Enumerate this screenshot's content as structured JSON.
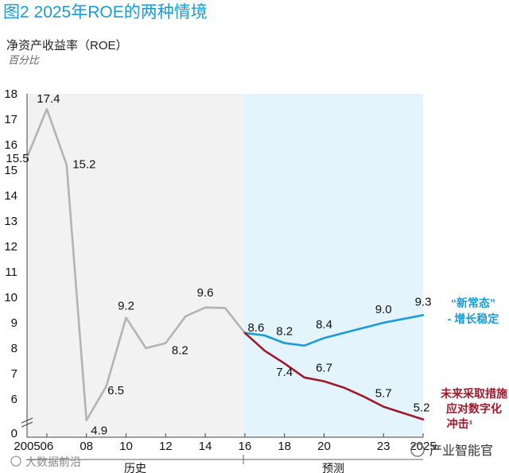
{
  "figure": {
    "title": "图2 2025年ROE的两种情境",
    "subtitle": "净资产收益率（ROE）",
    "unit": "百分比"
  },
  "chart_data": {
    "type": "line",
    "title": "图2 2025年ROE的两种情境",
    "ylabel": "净资产收益率（ROE）",
    "yunit": "百分比",
    "xlim": [
      2005,
      2025
    ],
    "ylim": [
      5,
      18
    ],
    "y_axis_break": true,
    "y_ticks": [
      18,
      17,
      16,
      15,
      14,
      13,
      12,
      11,
      10,
      9,
      8,
      7,
      6,
      0
    ],
    "x_ticks": [
      {
        "x": 2005,
        "label": "2005"
      },
      {
        "x": 2006,
        "label": "06"
      },
      {
        "x": 2008,
        "label": "08"
      },
      {
        "x": 2010,
        "label": "10"
      },
      {
        "x": 2012,
        "label": "12"
      },
      {
        "x": 2014,
        "label": "14"
      },
      {
        "x": 2016,
        "label": "16"
      },
      {
        "x": 2018,
        "label": "18"
      },
      {
        "x": 2020,
        "label": "20"
      },
      {
        "x": 2023,
        "label": "23"
      },
      {
        "x": 2025,
        "label": "2025"
      }
    ],
    "segments": [
      {
        "label": "历史",
        "from": 2005,
        "to": 2016
      },
      {
        "label": "预测",
        "from": 2016,
        "to": 2025
      }
    ],
    "series": [
      {
        "name": "历史",
        "color": "#b3b3b3",
        "points": [
          [
            2005,
            15.5
          ],
          [
            2006,
            17.4
          ],
          [
            2007,
            15.2
          ],
          [
            2008,
            4.9
          ],
          [
            2009,
            6.5
          ],
          [
            2010,
            9.2
          ],
          [
            2011,
            8.0
          ],
          [
            2012,
            8.2
          ],
          [
            2013,
            9.25
          ],
          [
            2014,
            9.6
          ],
          [
            2015,
            9.58
          ],
          [
            2016,
            8.6
          ]
        ]
      },
      {
        "name": "“新常态” - 增长稳定",
        "color": "#1a9bd7",
        "points": [
          [
            2016,
            8.6
          ],
          [
            2017,
            8.5
          ],
          [
            2018,
            8.2
          ],
          [
            2019,
            8.1
          ],
          [
            2020,
            8.4
          ],
          [
            2021,
            8.6
          ],
          [
            2022,
            8.8
          ],
          [
            2023,
            9.0
          ],
          [
            2024,
            9.15
          ],
          [
            2025,
            9.3
          ]
        ]
      },
      {
        "name": "未来采取措施应对数字化冲击¹",
        "color": "#a0182b",
        "points": [
          [
            2016,
            8.6
          ],
          [
            2017,
            7.9
          ],
          [
            2018,
            7.4
          ],
          [
            2019,
            6.85
          ],
          [
            2020,
            6.7
          ],
          [
            2021,
            6.45
          ],
          [
            2022,
            6.1
          ],
          [
            2023,
            5.7
          ],
          [
            2024,
            5.45
          ],
          [
            2025,
            5.2
          ]
        ]
      }
    ],
    "data_labels": [
      {
        "x": 2005,
        "y": 15.5,
        "text": "15.5"
      },
      {
        "x": 2006,
        "y": 17.4,
        "text": "17.4"
      },
      {
        "x": 2007,
        "y": 15.2,
        "text": "15.2"
      },
      {
        "x": 2008,
        "y": 4.9,
        "text": "4.9"
      },
      {
        "x": 2009,
        "y": 6.5,
        "text": "6.5"
      },
      {
        "x": 2010,
        "y": 9.2,
        "text": "9.2"
      },
      {
        "x": 2012,
        "y": 8.2,
        "text": "8.2"
      },
      {
        "x": 2014,
        "y": 9.6,
        "text": "9.6"
      },
      {
        "x": 2016,
        "y": 8.6,
        "text": "8.6"
      },
      {
        "x": 2018,
        "y": 8.2,
        "text": "8.2"
      },
      {
        "x": 2018,
        "y": 7.4,
        "text": "7.4"
      },
      {
        "x": 2020,
        "y": 8.4,
        "text": "8.4"
      },
      {
        "x": 2020,
        "y": 6.7,
        "text": "6.7"
      },
      {
        "x": 2023,
        "y": 9.0,
        "text": "9.0"
      },
      {
        "x": 2023,
        "y": 5.7,
        "text": "5.7"
      },
      {
        "x": 2025,
        "y": 9.3,
        "text": "9.3"
      },
      {
        "x": 2025,
        "y": 5.2,
        "text": "5.2"
      }
    ],
    "legend": [
      {
        "lines": [
          "“新常态”",
          "- 增长稳定"
        ],
        "color": "#1a9bd7",
        "placement": "right"
      },
      {
        "lines": [
          "未来采取措施",
          "应对数字化",
          "冲击¹"
        ],
        "color": "#a0182b",
        "placement": "right"
      }
    ]
  },
  "watermarks": {
    "left": "大数据前沿",
    "right": "产业智能官"
  },
  "colors": {
    "history_bg": "#f2f2f2",
    "forecast_bg": "#e3f4fc",
    "title": "#1a9bd7"
  }
}
